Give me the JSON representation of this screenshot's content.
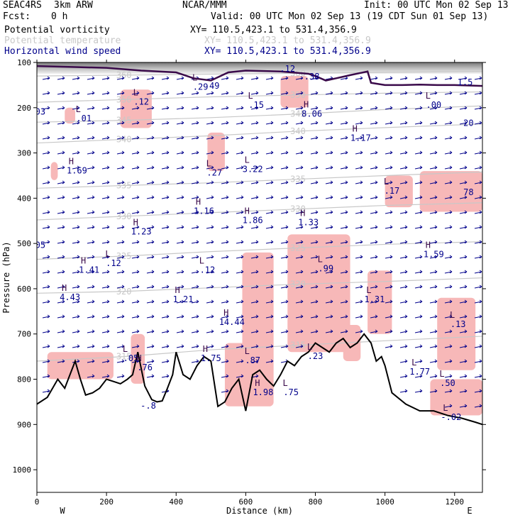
{
  "header": {
    "model": "SEAC4RS",
    "resolution": "3km ARW",
    "org": "NCAR/MMM",
    "init": "Init: 00 UTC Mon 02 Sep 13",
    "fcst_label": "Fcst:",
    "fcst_value": "0 h",
    "valid": "Valid: 00 UTC Mon 02 Sep 13 (19 CDT Sun 01 Sep 13)",
    "fields": [
      {
        "name": "Potential vorticity",
        "xy": "XY= 110.5,423.1 to 531.4,356.9",
        "color": "#000000"
      },
      {
        "name": "Potential temperature",
        "xy": "XY= 110.5,423.1 to 531.4,356.9",
        "color": "#c8c8c8"
      },
      {
        "name": "Horizontal wind speed",
        "xy": "XY= 110.5,423.1 to 531.4,356.9",
        "color": "#00008b"
      }
    ]
  },
  "chart_data": {
    "type": "cross-section",
    "xlabel": "Distance (km)",
    "ylabel": "Pressure (hPa)",
    "xlim": [
      0,
      1280
    ],
    "ylim": [
      1050,
      100
    ],
    "xticks": [
      0,
      200,
      400,
      600,
      800,
      1000,
      1200
    ],
    "yticks": [
      100,
      200,
      300,
      400,
      500,
      600,
      700,
      800,
      900,
      1000
    ],
    "x_end_labels": {
      "left": "W",
      "right": "E"
    },
    "colors": {
      "pv_shading": "#f7b8b8",
      "terrain": "#000000",
      "theta": "#c8c8c8",
      "wind": "#00008b",
      "pv_contour": "#3a0a4a"
    },
    "theta_contours": [
      {
        "label": "360",
        "p": [
          130,
          128,
          126,
          124,
          122,
          120
        ]
      },
      {
        "label": "350",
        "p": [
          188,
          182,
          176,
          172,
          168,
          165
        ]
      },
      {
        "label": "345",
        "p": [
          232,
          228,
          222,
          214,
          204,
          196
        ]
      },
      {
        "label": "340",
        "p": [
          278,
          270,
          262,
          252,
          244,
          236
        ]
      },
      {
        "label": "335",
        "p": [
          378,
          372,
          366,
          358,
          350,
          342
        ]
      },
      {
        "label": "330",
        "p": [
          448,
          440,
          432,
          424,
          416,
          410
        ]
      },
      {
        "label": "325",
        "p": [
          535,
          528,
          518,
          510,
          502,
          496
        ]
      },
      {
        "label": "320",
        "p": [
          610,
          606,
          598,
          590,
          584,
          576
        ]
      },
      {
        "label": "315",
        "p": [
          760,
          750,
          735,
          725,
          715,
          705
        ]
      }
    ],
    "contour_x": [
      0,
      250,
      500,
      750,
      1000,
      1280
    ],
    "terrain_surface": {
      "x": [
        0,
        30,
        60,
        80,
        100,
        110,
        125,
        140,
        160,
        180,
        200,
        220,
        240,
        260,
        275,
        290,
        310,
        330,
        345,
        360,
        375,
        390,
        400,
        420,
        440,
        460,
        480,
        500,
        520,
        540,
        560,
        580,
        600,
        620,
        640,
        660,
        680,
        700,
        720,
        740,
        760,
        780,
        800,
        820,
        840,
        860,
        880,
        900,
        920,
        940,
        960,
        975,
        990,
        1000,
        1020,
        1060,
        1100,
        1140,
        1180,
        1220,
        1260,
        1280
      ],
      "p": [
        855,
        840,
        800,
        820,
        780,
        760,
        800,
        835,
        830,
        820,
        800,
        805,
        810,
        800,
        790,
        740,
        815,
        845,
        850,
        848,
        820,
        790,
        740,
        790,
        800,
        770,
        750,
        760,
        860,
        850,
        820,
        800,
        870,
        790,
        780,
        800,
        815,
        790,
        760,
        770,
        750,
        740,
        720,
        730,
        740,
        720,
        710,
        730,
        720,
        700,
        720,
        760,
        750,
        770,
        830,
        855,
        870,
        870,
        880,
        886,
        895,
        900
      ]
    },
    "tropopause_pv": {
      "x": [
        0,
        100,
        200,
        300,
        400,
        450,
        500,
        550,
        600,
        700,
        780,
        800,
        830,
        860,
        900,
        950,
        960,
        1000,
        1050,
        1100,
        1150,
        1200,
        1280
      ],
      "p": [
        108,
        110,
        112,
        118,
        122,
        135,
        140,
        122,
        118,
        120,
        125,
        130,
        140,
        135,
        128,
        120,
        145,
        150,
        150,
        149,
        150,
        150,
        152
      ]
    },
    "extrema_labels": [
      {
        "type": "L",
        "value": ".12",
        "x": 720,
        "p": 120
      },
      {
        "type": "",
        "value": ".38",
        "x": 790,
        "p": 138
      },
      {
        "type": "L",
        "value": ".29",
        "x": 470,
        "p": 160
      },
      {
        "type": "",
        "value": "49",
        "x": 510,
        "p": 158
      },
      {
        "type": "",
        "value": "1.5",
        "x": 1230,
        "p": 150
      },
      {
        "type": "L",
        "value": ".12",
        "x": 300,
        "p": 193
      },
      {
        "type": "L",
        "value": ".15",
        "x": 630,
        "p": 200
      },
      {
        "type": "L",
        "value": ".00",
        "x": 1140,
        "p": 200
      },
      {
        "type": "",
        "value": "03",
        "x": 10,
        "p": 215
      },
      {
        "type": "L",
        "value": ".01",
        "x": 135,
        "p": 230
      },
      {
        "type": "H",
        "value": "8.06",
        "x": 790,
        "p": 220
      },
      {
        "type": "",
        "value": "20",
        "x": 1240,
        "p": 240
      },
      {
        "type": "H",
        "value": "1.17",
        "x": 930,
        "p": 273
      },
      {
        "type": "H",
        "value": "1.69",
        "x": 115,
        "p": 345
      },
      {
        "type": "L",
        "value": ".27",
        "x": 510,
        "p": 350
      },
      {
        "type": "L",
        "value": "3.22",
        "x": 620,
        "p": 342
      },
      {
        "type": "L",
        "value": ".17",
        "x": 1020,
        "p": 390
      },
      {
        "type": "",
        "value": "78",
        "x": 1240,
        "p": 393
      },
      {
        "type": "H",
        "value": "1.16",
        "x": 480,
        "p": 435
      },
      {
        "type": "H",
        "value": "1.86",
        "x": 620,
        "p": 455
      },
      {
        "type": "H",
        "value": "1.33",
        "x": 780,
        "p": 460
      },
      {
        "type": "H",
        "value": "1.23",
        "x": 300,
        "p": 480
      },
      {
        "type": "",
        "value": "05",
        "x": 10,
        "p": 510
      },
      {
        "type": "H",
        "value": "1.59",
        "x": 1140,
        "p": 530
      },
      {
        "type": "L",
        "value": ".12",
        "x": 220,
        "p": 550
      },
      {
        "type": "H",
        "value": "1.41",
        "x": 150,
        "p": 565
      },
      {
        "type": "L",
        "value": ".12",
        "x": 490,
        "p": 565
      },
      {
        "type": "L",
        "value": ".99",
        "x": 830,
        "p": 562
      },
      {
        "type": "H",
        "value": "4.43",
        "x": 95,
        "p": 625
      },
      {
        "type": "L",
        "value": "1.31",
        "x": 970,
        "p": 630
      },
      {
        "type": "H",
        "value": "1.21",
        "x": 420,
        "p": 630
      },
      {
        "type": "H",
        "value": "14.44",
        "x": 560,
        "p": 680
      },
      {
        "type": "L",
        "value": ".13",
        "x": 1210,
        "p": 685
      },
      {
        "type": "L",
        "value": ".05",
        "x": 270,
        "p": 760
      },
      {
        "type": "H",
        "value": "1.75",
        "x": 500,
        "p": 760
      },
      {
        "type": "L",
        "value": ".87",
        "x": 620,
        "p": 765
      },
      {
        "type": "L",
        "value": ".23",
        "x": 800,
        "p": 755
      },
      {
        "type": "H",
        "value": ".76",
        "x": 310,
        "p": 780
      },
      {
        "type": "L",
        "value": "1.77",
        "x": 1100,
        "p": 790
      },
      {
        "type": "L",
        "value": ".50",
        "x": 1180,
        "p": 815
      },
      {
        "type": "H",
        "value": "1.98",
        "x": 650,
        "p": 835
      },
      {
        "type": "L",
        "value": ".75",
        "x": 730,
        "p": 835
      },
      {
        "type": "",
        "value": "-.8",
        "x": 320,
        "p": 865
      },
      {
        "type": "L",
        "value": "-.02",
        "x": 1190,
        "p": 890
      }
    ],
    "pv_shaded_regions": [
      {
        "x": [
          240,
          330
        ],
        "p": [
          160,
          245
        ]
      },
      {
        "x": [
          80,
          110
        ],
        "p": [
          200,
          235
        ]
      },
      {
        "x": [
          40,
          60
        ],
        "p": [
          320,
          360
        ]
      },
      {
        "x": [
          490,
          540
        ],
        "p": [
          255,
          340
        ]
      },
      {
        "x": [
          700,
          780
        ],
        "p": [
          130,
          200
        ]
      },
      {
        "x": [
          1000,
          1080
        ],
        "p": [
          350,
          420
        ]
      },
      {
        "x": [
          1100,
          1280
        ],
        "p": [
          340,
          430
        ]
      },
      {
        "x": [
          590,
          680
        ],
        "p": [
          520,
          860
        ]
      },
      {
        "x": [
          540,
          610
        ],
        "p": [
          720,
          860
        ]
      },
      {
        "x": [
          720,
          900
        ],
        "p": [
          480,
          740
        ]
      },
      {
        "x": [
          950,
          1020
        ],
        "p": [
          560,
          700
        ]
      },
      {
        "x": [
          1150,
          1260
        ],
        "p": [
          620,
          780
        ]
      },
      {
        "x": [
          1130,
          1280
        ],
        "p": [
          800,
          880
        ]
      },
      {
        "x": [
          30,
          220
        ],
        "p": [
          740,
          800
        ]
      },
      {
        "x": [
          270,
          310
        ],
        "p": [
          700,
          810
        ]
      },
      {
        "x": [
          880,
          930
        ],
        "p": [
          680,
          760
        ]
      }
    ]
  }
}
